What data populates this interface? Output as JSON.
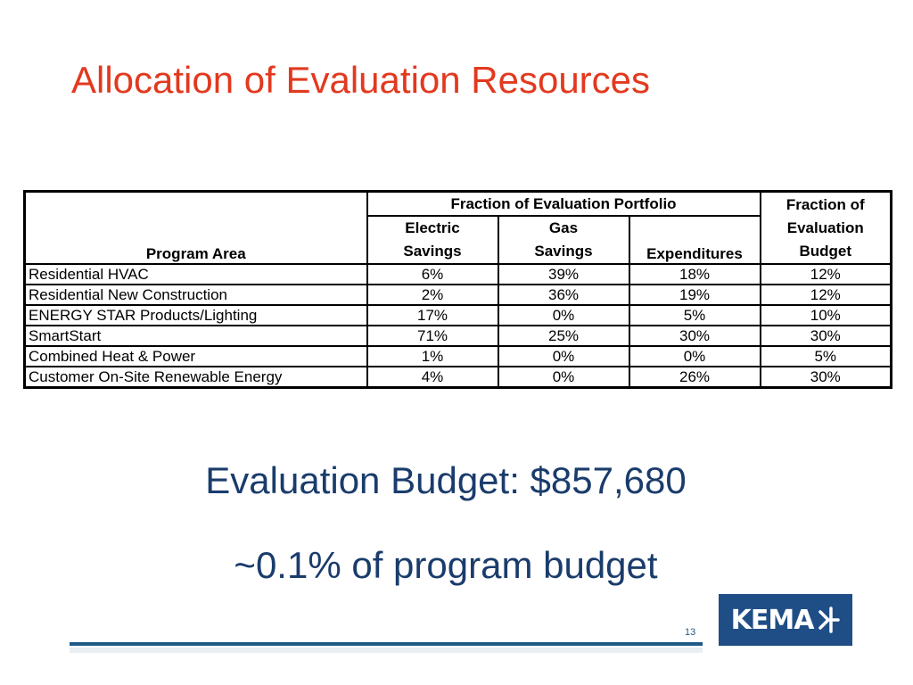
{
  "title": "Allocation of Evaluation Resources",
  "table": {
    "group_header": "Fraction of Evaluation Portfolio",
    "program_area_header": "Program Area",
    "electric_header": [
      "Electric",
      "Savings"
    ],
    "gas_header": [
      "Gas",
      "Savings"
    ],
    "expenditures_header": "Expenditures",
    "budget_header": [
      "Fraction of",
      "Evaluation",
      "Budget"
    ],
    "rows": [
      {
        "area": "Residential HVAC",
        "electric": "6%",
        "gas": "39%",
        "expenditures": "18%",
        "budget": "12%"
      },
      {
        "area": "Residential New Construction",
        "electric": "2%",
        "gas": "36%",
        "expenditures": "19%",
        "budget": "12%"
      },
      {
        "area": "ENERGY STAR Products/Lighting",
        "electric": "17%",
        "gas": "0%",
        "expenditures": "5%",
        "budget": "10%"
      },
      {
        "area": "SmartStart",
        "electric": "71%",
        "gas": "25%",
        "expenditures": "30%",
        "budget": "30%"
      },
      {
        "area": "Combined Heat & Power",
        "electric": "1%",
        "gas": "0%",
        "expenditures": "0%",
        "budget": "5%"
      },
      {
        "area": "Customer On-Site Renewable Energy",
        "electric": "4%",
        "gas": "0%",
        "expenditures": "26%",
        "budget": "30%"
      }
    ]
  },
  "budget_line": "Evaluation Budget: $857,680",
  "share_line": "~0.1% of program budget",
  "page_number": "13",
  "logo_text": "KEMA",
  "colors": {
    "title": "#e2391f",
    "body_text": "#1a3c6c",
    "brand": "#1f4e86"
  }
}
